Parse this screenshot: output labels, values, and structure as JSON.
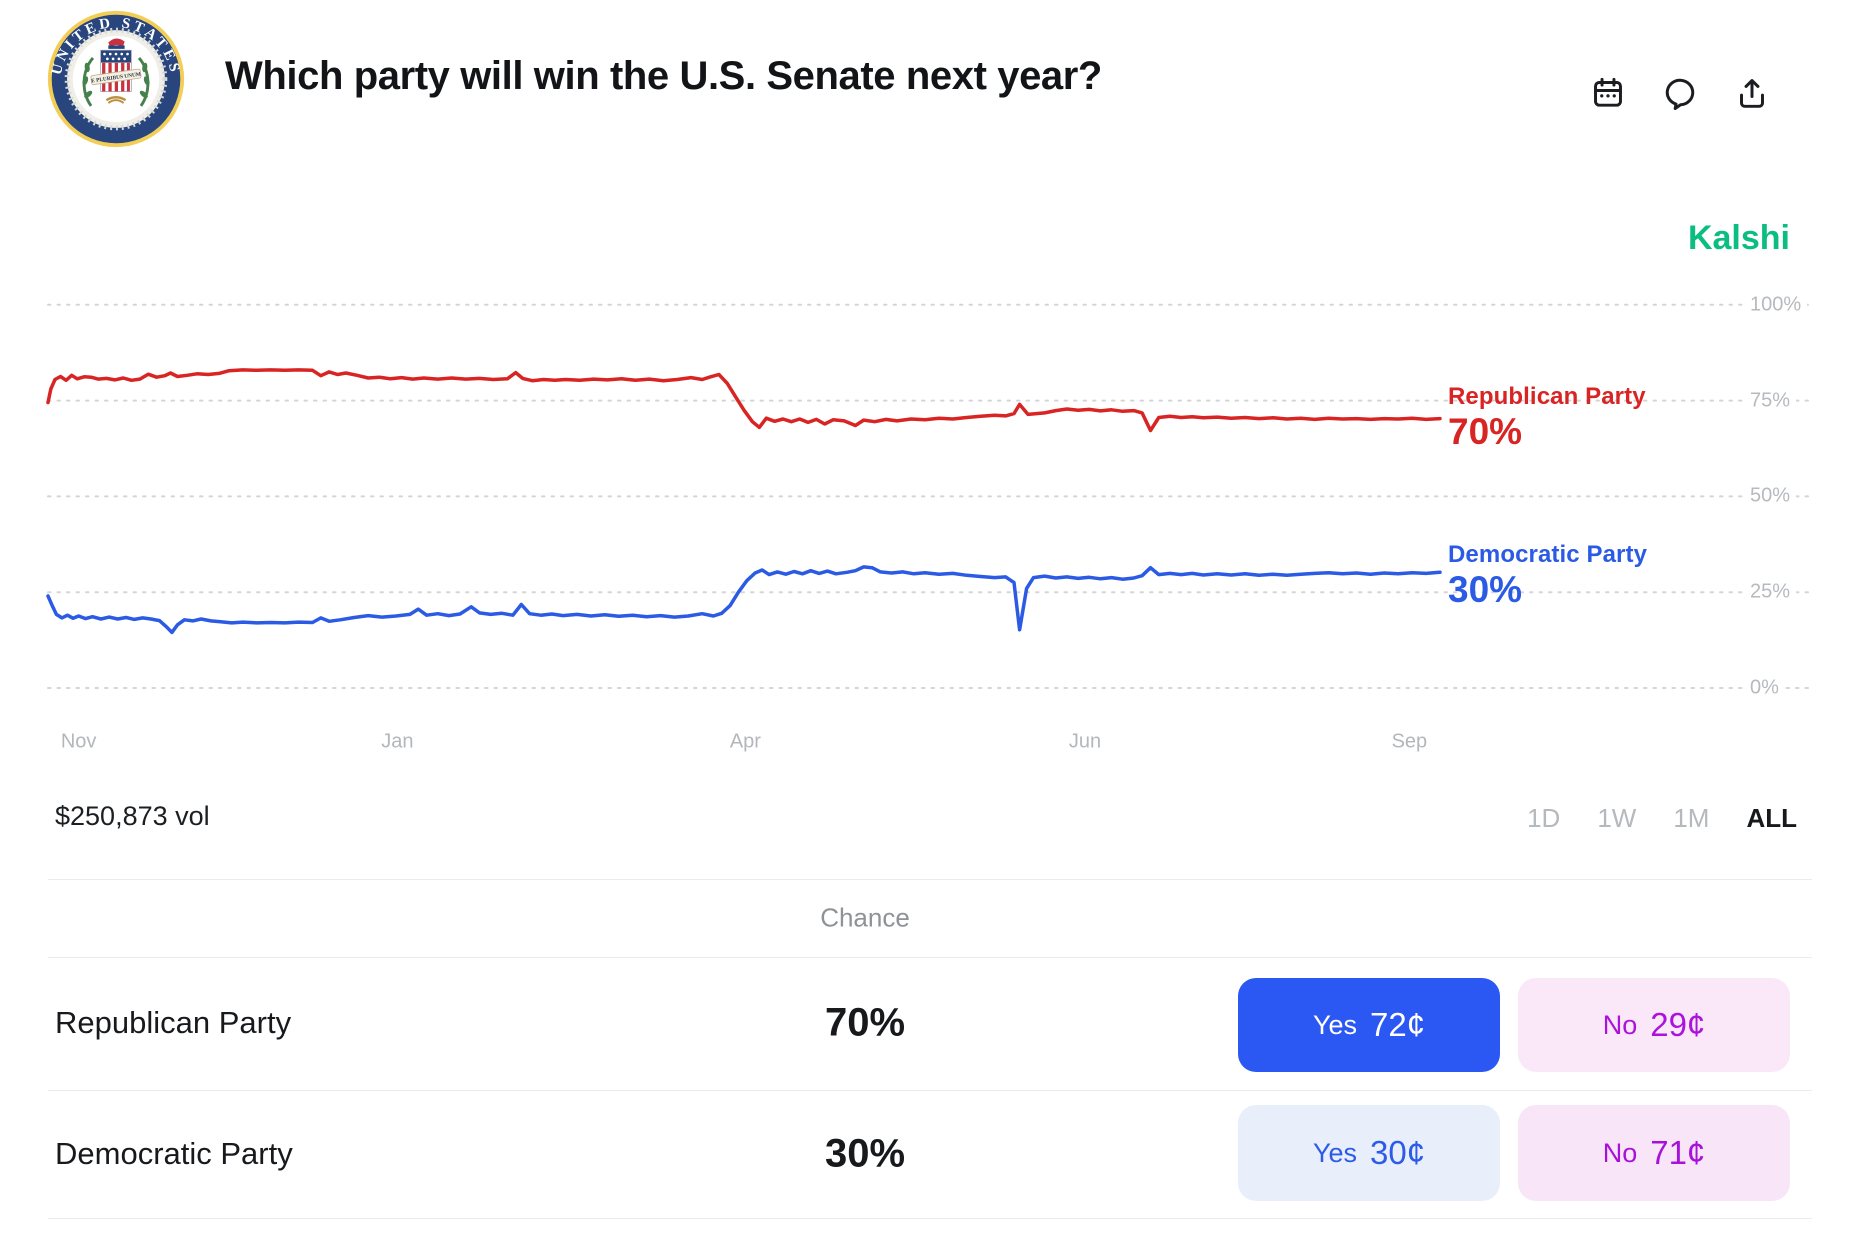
{
  "header": {
    "title": "Which party will win the U.S. Senate next year?",
    "icons": [
      "calendar-icon",
      "comment-icon",
      "share-icon"
    ]
  },
  "brand": {
    "name": "Kalshi",
    "color": "#0abd81"
  },
  "volume": "$250,873 vol",
  "ranges": {
    "options": [
      "1D",
      "1W",
      "1M",
      "ALL"
    ],
    "active": "ALL"
  },
  "chart_data": {
    "type": "line",
    "title": "Which party will win the U.S. Senate next year?",
    "ylim": [
      0,
      100
    ],
    "grid": "dotted-horizontal",
    "legend_position": "right-of-line-end",
    "yticks": [
      {
        "value": 100,
        "label": "100%"
      },
      {
        "value": 75,
        "label": "75%"
      },
      {
        "value": 50,
        "label": "50%"
      },
      {
        "value": 25,
        "label": "25%"
      },
      {
        "value": 0,
        "label": "0%"
      }
    ],
    "xticks": [
      {
        "label": "Nov",
        "x": 2.2
      },
      {
        "label": "Jan",
        "x": 25.1
      },
      {
        "label": "Apr",
        "x": 50.1
      },
      {
        "label": "Jun",
        "x": 74.5
      },
      {
        "label": "Sep",
        "x": 97.8
      }
    ],
    "series": [
      {
        "name": "Republican Party",
        "display_value": "70%",
        "color": "#d92424",
        "points": [
          [
            0,
            74.5
          ],
          [
            0.2,
            78
          ],
          [
            0.5,
            80.5
          ],
          [
            0.9,
            81.3
          ],
          [
            1.3,
            80.3
          ],
          [
            1.7,
            81.6
          ],
          [
            2.1,
            80.7
          ],
          [
            2.6,
            81.2
          ],
          [
            3.1,
            81.1
          ],
          [
            3.6,
            80.6
          ],
          [
            4.2,
            80.8
          ],
          [
            4.8,
            80.4
          ],
          [
            5.4,
            80.9
          ],
          [
            6,
            80.3
          ],
          [
            6.6,
            80.6
          ],
          [
            7.2,
            81.9
          ],
          [
            7.8,
            81.1
          ],
          [
            8.4,
            81.5
          ],
          [
            8.8,
            82.2
          ],
          [
            9.3,
            81.3
          ],
          [
            10,
            81.6
          ],
          [
            10.7,
            82
          ],
          [
            11.5,
            81.8
          ],
          [
            12.3,
            82.1
          ],
          [
            13,
            82.8
          ],
          [
            14,
            83
          ],
          [
            15,
            82.9
          ],
          [
            16,
            83
          ],
          [
            17,
            82.9
          ],
          [
            18,
            83
          ],
          [
            19,
            82.9
          ],
          [
            19.6,
            81.5
          ],
          [
            20.2,
            82.5
          ],
          [
            20.8,
            81.8
          ],
          [
            21.4,
            82.2
          ],
          [
            22.2,
            81.6
          ],
          [
            23,
            80.9
          ],
          [
            23.8,
            81.1
          ],
          [
            24.6,
            80.7
          ],
          [
            25.4,
            81
          ],
          [
            26.2,
            80.6
          ],
          [
            27,
            80.9
          ],
          [
            28,
            80.6
          ],
          [
            29,
            80.9
          ],
          [
            30,
            80.6
          ],
          [
            31,
            80.8
          ],
          [
            32,
            80.5
          ],
          [
            33,
            80.7
          ],
          [
            33.6,
            82.3
          ],
          [
            34.1,
            80.8
          ],
          [
            34.8,
            80.2
          ],
          [
            35.6,
            80.5
          ],
          [
            36.4,
            80.3
          ],
          [
            37.2,
            80.5
          ],
          [
            38.2,
            80.3
          ],
          [
            39.2,
            80.6
          ],
          [
            40.2,
            80.4
          ],
          [
            41.2,
            80.7
          ],
          [
            42.2,
            80.3
          ],
          [
            43.2,
            80.6
          ],
          [
            44.2,
            80.2
          ],
          [
            45.2,
            80.5
          ],
          [
            46.2,
            81
          ],
          [
            47,
            80.5
          ],
          [
            47.6,
            81.2
          ],
          [
            48.2,
            81.8
          ],
          [
            48.8,
            79.5
          ],
          [
            49.4,
            76
          ],
          [
            50,
            72.5
          ],
          [
            50.6,
            69.5
          ],
          [
            51.1,
            68
          ],
          [
            51.6,
            70.4
          ],
          [
            52.2,
            69.6
          ],
          [
            52.8,
            70.2
          ],
          [
            53.4,
            69.5
          ],
          [
            54,
            70.2
          ],
          [
            54.6,
            69.3
          ],
          [
            55.2,
            70.1
          ],
          [
            55.8,
            68.9
          ],
          [
            56.4,
            70
          ],
          [
            57.2,
            69.7
          ],
          [
            58,
            68.5
          ],
          [
            58.6,
            69.9
          ],
          [
            59.4,
            69.5
          ],
          [
            60.2,
            70.1
          ],
          [
            61,
            69.7
          ],
          [
            62,
            70.2
          ],
          [
            63,
            70
          ],
          [
            64,
            70.4
          ],
          [
            65,
            70.2
          ],
          [
            66,
            70.6
          ],
          [
            67,
            70.9
          ],
          [
            68,
            71.2
          ],
          [
            68.8,
            71
          ],
          [
            69.4,
            71.6
          ],
          [
            69.8,
            74
          ],
          [
            70.4,
            71.4
          ],
          [
            71.6,
            71.8
          ],
          [
            72.4,
            72.4
          ],
          [
            73.2,
            72.8
          ],
          [
            74,
            72.5
          ],
          [
            74.8,
            72.7
          ],
          [
            75.6,
            72.3
          ],
          [
            76.4,
            72.6
          ],
          [
            77.2,
            72.2
          ],
          [
            78,
            72.4
          ],
          [
            78.6,
            71.8
          ],
          [
            79.2,
            67.2
          ],
          [
            79.8,
            70.6
          ],
          [
            80.6,
            70.9
          ],
          [
            81.4,
            70.6
          ],
          [
            82.2,
            70.8
          ],
          [
            83,
            70.5
          ],
          [
            84,
            70.7
          ],
          [
            85,
            70.4
          ],
          [
            86,
            70.6
          ],
          [
            87,
            70.3
          ],
          [
            88,
            70.5
          ],
          [
            89,
            70.2
          ],
          [
            90,
            70.4
          ],
          [
            91,
            70.1
          ],
          [
            92,
            70.4
          ],
          [
            93,
            70.2
          ],
          [
            94,
            70.3
          ],
          [
            95,
            70.1
          ],
          [
            96,
            70.3
          ],
          [
            97,
            70.2
          ],
          [
            98,
            70.4
          ],
          [
            99,
            70.1
          ],
          [
            100,
            70.3
          ]
        ]
      },
      {
        "name": "Democratic Party",
        "display_value": "30%",
        "color": "#2b5be4",
        "points": [
          [
            0,
            24
          ],
          [
            0.3,
            21.5
          ],
          [
            0.6,
            19.2
          ],
          [
            1,
            18.3
          ],
          [
            1.4,
            19
          ],
          [
            1.8,
            18.2
          ],
          [
            2.2,
            18.8
          ],
          [
            2.7,
            18.1
          ],
          [
            3.2,
            18.6
          ],
          [
            3.8,
            18
          ],
          [
            4.4,
            18.5
          ],
          [
            5,
            18
          ],
          [
            5.6,
            18.4
          ],
          [
            6.2,
            17.9
          ],
          [
            6.8,
            18.3
          ],
          [
            7.4,
            18
          ],
          [
            8,
            17.6
          ],
          [
            8.5,
            16
          ],
          [
            8.9,
            14.5
          ],
          [
            9.3,
            16.5
          ],
          [
            9.8,
            17.8
          ],
          [
            10.4,
            17.5
          ],
          [
            11,
            18
          ],
          [
            11.7,
            17.5
          ],
          [
            12.4,
            17.3
          ],
          [
            13.2,
            17
          ],
          [
            14,
            17.2
          ],
          [
            15,
            17
          ],
          [
            16,
            17.1
          ],
          [
            17,
            17
          ],
          [
            18,
            17.2
          ],
          [
            19,
            17.1
          ],
          [
            19.6,
            18.3
          ],
          [
            20.2,
            17.4
          ],
          [
            21,
            17.8
          ],
          [
            22,
            18.4
          ],
          [
            23,
            18.9
          ],
          [
            24,
            18.5
          ],
          [
            25,
            18.8
          ],
          [
            26,
            19.2
          ],
          [
            26.6,
            20.6
          ],
          [
            27.2,
            19
          ],
          [
            28,
            19.4
          ],
          [
            28.8,
            18.9
          ],
          [
            29.6,
            19.3
          ],
          [
            30.4,
            21.2
          ],
          [
            31,
            19.6
          ],
          [
            31.8,
            19.2
          ],
          [
            32.6,
            19.5
          ],
          [
            33.4,
            19
          ],
          [
            34,
            21.8
          ],
          [
            34.6,
            19.4
          ],
          [
            35.4,
            19
          ],
          [
            36.2,
            19.3
          ],
          [
            37,
            18.9
          ],
          [
            38,
            19.2
          ],
          [
            39,
            18.8
          ],
          [
            40,
            19.1
          ],
          [
            41,
            18.7
          ],
          [
            42,
            19
          ],
          [
            43,
            18.6
          ],
          [
            44,
            18.9
          ],
          [
            45,
            18.5
          ],
          [
            46,
            18.8
          ],
          [
            47,
            19.4
          ],
          [
            47.8,
            18.8
          ],
          [
            48.4,
            19.5
          ],
          [
            49,
            21.5
          ],
          [
            49.6,
            25
          ],
          [
            50.2,
            28
          ],
          [
            50.8,
            30
          ],
          [
            51.3,
            30.8
          ],
          [
            51.8,
            29.6
          ],
          [
            52.4,
            30.3
          ],
          [
            53,
            29.7
          ],
          [
            53.6,
            30.4
          ],
          [
            54.2,
            29.8
          ],
          [
            54.8,
            30.6
          ],
          [
            55.4,
            29.9
          ],
          [
            56,
            30.5
          ],
          [
            56.6,
            29.8
          ],
          [
            57.4,
            30.2
          ],
          [
            58,
            30.6
          ],
          [
            58.6,
            31.6
          ],
          [
            59.2,
            31.4
          ],
          [
            59.8,
            30.3
          ],
          [
            60.6,
            30
          ],
          [
            61.4,
            30.3
          ],
          [
            62.2,
            29.8
          ],
          [
            63,
            30.1
          ],
          [
            64,
            29.7
          ],
          [
            65,
            29.9
          ],
          [
            66,
            29.4
          ],
          [
            67,
            29.1
          ],
          [
            68,
            28.8
          ],
          [
            68.8,
            29
          ],
          [
            69.4,
            27.5
          ],
          [
            69.8,
            15.2
          ],
          [
            70.3,
            26
          ],
          [
            70.8,
            28.8
          ],
          [
            71.6,
            29.2
          ],
          [
            72.4,
            28.7
          ],
          [
            73.2,
            29
          ],
          [
            74,
            28.6
          ],
          [
            74.8,
            28.9
          ],
          [
            75.6,
            28.5
          ],
          [
            76.4,
            28.8
          ],
          [
            77.2,
            28.4
          ],
          [
            78,
            28.7
          ],
          [
            78.6,
            29.3
          ],
          [
            79.2,
            31.4
          ],
          [
            79.8,
            29.6
          ],
          [
            80.6,
            29.9
          ],
          [
            81.4,
            29.6
          ],
          [
            82.2,
            29.9
          ],
          [
            83,
            29.5
          ],
          [
            84,
            29.8
          ],
          [
            85,
            29.5
          ],
          [
            86,
            29.8
          ],
          [
            87,
            29.4
          ],
          [
            88,
            29.7
          ],
          [
            89,
            29.4
          ],
          [
            90,
            29.7
          ],
          [
            91,
            29.9
          ],
          [
            92,
            30.1
          ],
          [
            93,
            29.8
          ],
          [
            94,
            30
          ],
          [
            95,
            29.7
          ],
          [
            96,
            30
          ],
          [
            97,
            29.8
          ],
          [
            98,
            30.1
          ],
          [
            99,
            29.9
          ],
          [
            100,
            30.2
          ]
        ]
      }
    ]
  },
  "table": {
    "chance_header": "Chance",
    "rows": [
      {
        "name": "Republican Party",
        "chance": "70%",
        "yes_label": "Yes",
        "yes_price": "72¢",
        "yes_selected": true,
        "no_label": "No",
        "no_price": "29¢"
      },
      {
        "name": "Democratic Party",
        "chance": "30%",
        "yes_label": "Yes",
        "yes_price": "30¢",
        "yes_selected": false,
        "no_label": "No",
        "no_price": "71¢"
      }
    ]
  },
  "colors": {
    "republican": "#d92424",
    "democratic": "#2b5be4",
    "brand_green": "#0abd81",
    "yes_solid": "#2b57f2",
    "no_light": "#fae8f9",
    "no_text": "#ab13dc",
    "yes_light": "#e9eefb",
    "grid": "#d5d5d7"
  }
}
